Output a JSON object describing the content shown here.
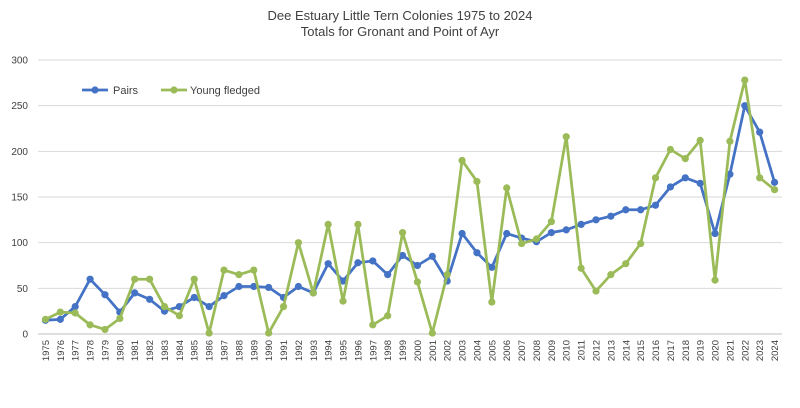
{
  "chart_data": {
    "type": "line",
    "title": "Dee Estuary Little Tern Colonies 1975 to 2024",
    "subtitle": "Totals for Gronant and Point of Ayr",
    "xlabel": "",
    "ylabel": "",
    "ylim": [
      0,
      300
    ],
    "yticks": [
      0,
      50,
      100,
      150,
      200,
      250,
      300
    ],
    "grid": true,
    "legend_position": "top-left",
    "categories": [
      "1975",
      "1976",
      "1977",
      "1978",
      "1979",
      "1980",
      "1981",
      "1982",
      "1983",
      "1984",
      "1985",
      "1986",
      "1987",
      "1988",
      "1989",
      "1990",
      "1991",
      "1992",
      "1993",
      "1994",
      "1995",
      "1996",
      "1997",
      "1998",
      "1999",
      "2000",
      "2001",
      "2002",
      "2003",
      "2004",
      "2005",
      "2006",
      "2007",
      "2008",
      "2009",
      "2010",
      "2011",
      "2012",
      "2013",
      "2014",
      "2015",
      "2016",
      "2017",
      "2018",
      "2019",
      "2020",
      "2021",
      "2022",
      "2023",
      "2024"
    ],
    "series": [
      {
        "name": "Pairs",
        "color": "#4472C4",
        "values": [
          15,
          16,
          30,
          60,
          43,
          24,
          45,
          38,
          25,
          30,
          40,
          30,
          42,
          52,
          52,
          51,
          40,
          52,
          45,
          77,
          58,
          78,
          80,
          65,
          86,
          75,
          85,
          58,
          110,
          89,
          73,
          110,
          105,
          101,
          111,
          114,
          120,
          125,
          129,
          136,
          136,
          141,
          161,
          171,
          165,
          110,
          175,
          250,
          221,
          166
        ]
      },
      {
        "name": "Young fledged",
        "color": "#9BBB59",
        "values": [
          16,
          24,
          23,
          10,
          5,
          17,
          60,
          60,
          30,
          20,
          60,
          1,
          70,
          65,
          70,
          1,
          30,
          100,
          45,
          120,
          36,
          120,
          10,
          20,
          111,
          57,
          1,
          65,
          190,
          167,
          35,
          160,
          99,
          104,
          123,
          216,
          72,
          47,
          65,
          77,
          99,
          171,
          202,
          192,
          212,
          59,
          211,
          278,
          171,
          158
        ]
      }
    ]
  }
}
